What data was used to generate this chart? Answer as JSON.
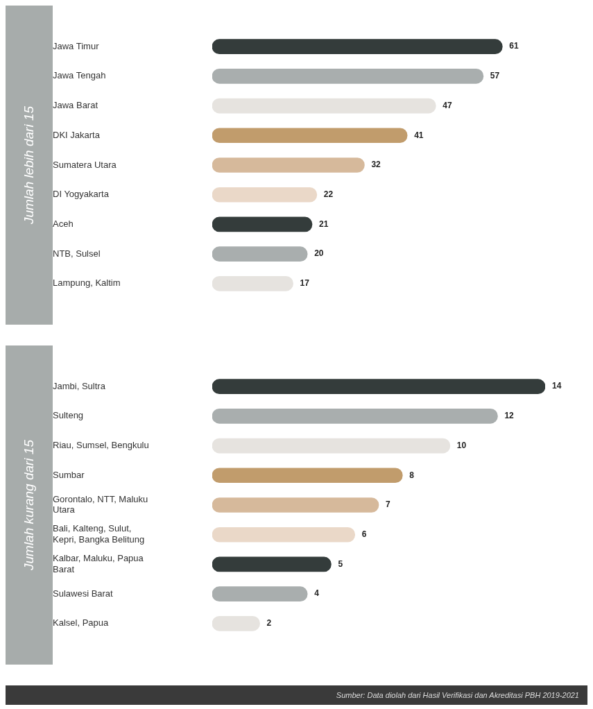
{
  "chart_data": [
    {
      "type": "bar",
      "orientation": "horizontal",
      "ylabel": "Jumlah lebih dari 15",
      "categories": [
        "Jawa Timur",
        "Jawa Tengah",
        "Jawa Barat",
        "DKI Jakarta",
        "Sumatera Utara",
        "DI Yogyakarta",
        "Aceh",
        "NTB, Sulsel",
        "Lampung, Kaltim"
      ],
      "values": [
        61,
        57,
        47,
        41,
        32,
        22,
        21,
        20,
        17
      ],
      "colors": [
        "#343c3b",
        "#a9aeae",
        "#e6e3df",
        "#c19c6c",
        "#d6b99b",
        "#ead8c8",
        "#343c3b",
        "#a9aeae",
        "#e6e3df"
      ],
      "data_labels": true,
      "tick_labels": "y",
      "grid": false,
      "legend": false
    },
    {
      "type": "bar",
      "orientation": "horizontal",
      "ylabel": "Jumlah kurang dari 15",
      "categories": [
        "Jambi, Sultra",
        "Sulteng",
        "Riau, Sumsel, Bengkulu",
        "Sumbar",
        "Gorontalo, NTT, Maluku Utara",
        "Bali, Kalteng, Sulut, Kepri, Bangka Belitung",
        "Kalbar, Maluku, Papua Barat",
        "Sulawesi Barat",
        "Kalsel, Papua"
      ],
      "values": [
        14,
        12,
        10,
        8,
        7,
        6,
        5,
        4,
        2
      ],
      "colors": [
        "#343c3b",
        "#a9aeae",
        "#e6e3df",
        "#c19c6c",
        "#d6b99b",
        "#ead8c8",
        "#343c3b",
        "#a9aeae",
        "#e6e3df"
      ],
      "data_labels": true,
      "tick_labels": "y",
      "grid": false,
      "legend": false,
      "annotations": [
        "Sumber: Data diolah dari Hasil Verifikasi dan Akreditasi PBH 2019-2021"
      ]
    }
  ]
}
